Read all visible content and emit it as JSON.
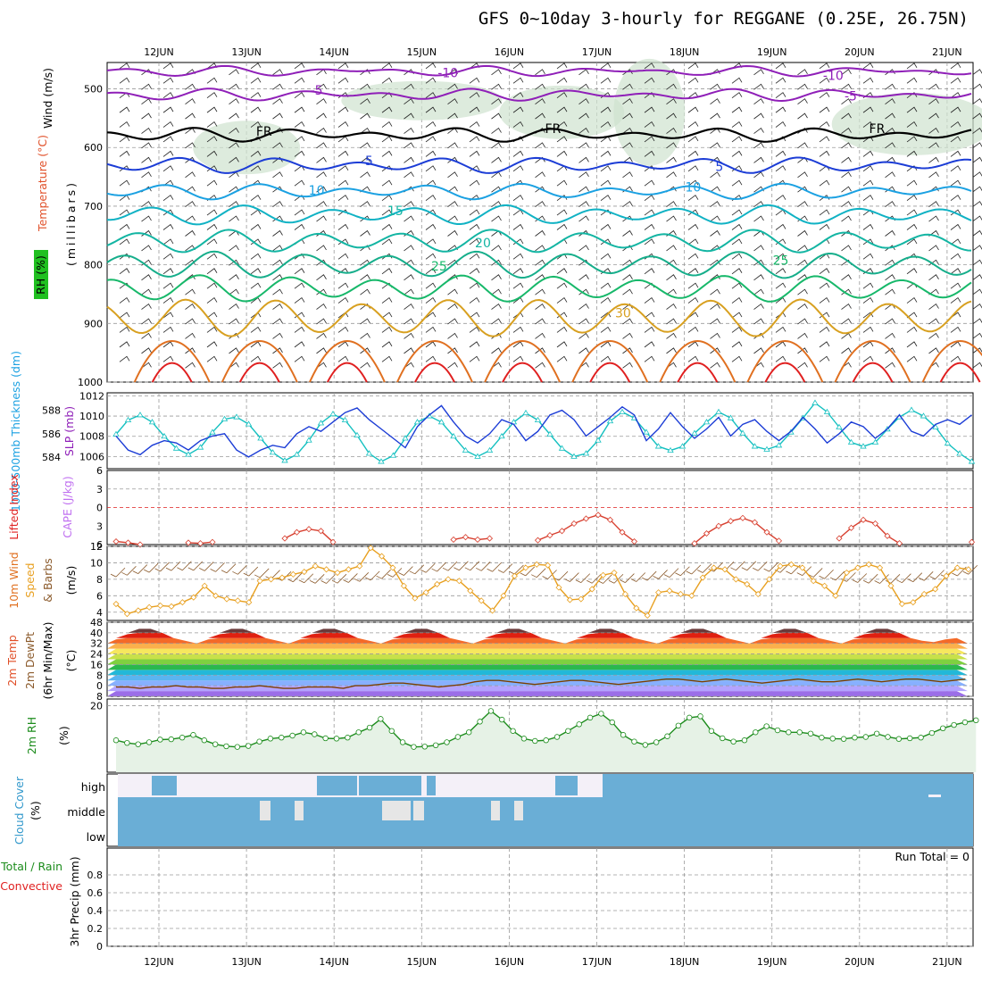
{
  "title": "GFS 0~10day 3-hourly for REGGANE (0.25E, 26.75N)",
  "days": [
    "12JUN",
    "13JUN",
    "14JUN",
    "15JUN",
    "16JUN",
    "17JUN",
    "18JUN",
    "19JUN",
    "20JUN",
    "21JUN"
  ],
  "run_total": "Run Total = 0",
  "colors": {
    "grid": "#9a9a9a",
    "purple": "#8f1fb8",
    "black": "#000000",
    "blue": "#1c3dd6",
    "cyan": "#1ba1e2",
    "teal": "#13b5a3",
    "green": "#17b86a",
    "yellow": "#d8a020",
    "orange": "#e07020",
    "red": "#e02020",
    "rh_fill": "#e6f2e6",
    "cloud": "#6aaed6"
  },
  "chart_data": [
    {
      "id": "upper-air",
      "type": "line",
      "ylabel_parts": [
        "Wind (m/s)",
        "Temperature (°C)",
        "RH (%)"
      ],
      "yunits": "(millibars)",
      "yticks": [
        500,
        600,
        700,
        800,
        900,
        1000
      ],
      "ylim": [
        455,
        1000
      ],
      "contour_labels": [
        {
          "text": "-10",
          "day": 3.3,
          "p": 480
        },
        {
          "text": "-10",
          "day": 7.7,
          "p": 485
        },
        {
          "text": "-5",
          "day": 1.8,
          "p": 510
        },
        {
          "text": "-5",
          "day": 7.9,
          "p": 520
        },
        {
          "text": "FR",
          "day": 1.2,
          "p": 580
        },
        {
          "text": "FR",
          "day": 4.5,
          "p": 575
        },
        {
          "text": "FR",
          "day": 8.2,
          "p": 575
        },
        {
          "text": "5",
          "day": 2.4,
          "p": 630
        },
        {
          "text": "5",
          "day": 6.4,
          "p": 640
        },
        {
          "text": "10",
          "day": 1.8,
          "p": 680
        },
        {
          "text": "10",
          "day": 6.1,
          "p": 675
        },
        {
          "text": "15",
          "day": 2.7,
          "p": 715
        },
        {
          "text": "20",
          "day": 3.7,
          "p": 770
        },
        {
          "text": "25",
          "day": 3.2,
          "p": 810
        },
        {
          "text": "25",
          "day": 7.1,
          "p": 800
        },
        {
          "text": "30",
          "day": 5.3,
          "p": 890
        }
      ]
    },
    {
      "id": "thickness-slp",
      "type": "line",
      "ylabel_left": "1000-500mb Thickness (dm)",
      "ylabel_right": "SLP (mb)",
      "yticks_left": [
        584,
        586,
        588
      ],
      "yticks_right": [
        1006,
        1008,
        1010,
        1012
      ],
      "series": [
        {
          "name": "SLP (mb)",
          "color": "#14c0c0",
          "values": [
            1008.2,
            1009.6,
            1010.1,
            1009.4,
            1008.0,
            1006.8,
            1006.2,
            1006.9,
            1008.4,
            1009.7,
            1009.9,
            1009.2,
            1007.8,
            1006.4,
            1005.6,
            1006.2,
            1007.6,
            1009.3,
            1010.2,
            1009.6,
            1008.1,
            1006.3,
            1005.5,
            1006.1,
            1007.8,
            1009.4,
            1010.0,
            1009.4,
            1008.0,
            1006.6,
            1006.0,
            1006.6,
            1008.0,
            1009.4,
            1010.3,
            1009.6,
            1008.2,
            1006.8,
            1006.0,
            1006.3,
            1007.6,
            1009.5,
            1010.4,
            1009.8,
            1008.4,
            1007.0,
            1006.6,
            1007.0,
            1008.3,
            1009.4,
            1010.4,
            1009.8,
            1008.3,
            1007.0,
            1006.7,
            1007.1,
            1008.4,
            1009.8,
            1011.3,
            1010.4,
            1008.9,
            1007.4,
            1007.0,
            1007.4,
            1008.7,
            1009.9,
            1010.6,
            1010.0,
            1008.9,
            1007.3,
            1006.3,
            1005.5
          ]
        },
        {
          "name": "Thickness (dm)",
          "color": "#1c3dd6",
          "values": [
            585.8,
            584.6,
            584.2,
            585.0,
            585.4,
            585.2,
            584.6,
            585.4,
            585.8,
            586.0,
            584.6,
            584.0,
            584.6,
            585.0,
            584.8,
            586.0,
            586.6,
            586.2,
            587.0,
            587.8,
            588.2,
            587.2,
            586.4,
            585.6,
            584.8,
            586.6,
            587.6,
            588.4,
            587.0,
            585.8,
            585.2,
            586.0,
            587.2,
            586.8,
            585.4,
            586.2,
            587.6,
            588.0,
            587.2,
            585.8,
            586.6,
            587.4,
            588.3,
            587.6,
            585.4,
            586.4,
            587.8,
            586.6,
            585.6,
            586.4,
            587.4,
            585.8,
            586.8,
            587.2,
            586.2,
            585.4,
            586.2,
            587.4,
            586.4,
            585.2,
            586.0,
            587.0,
            586.6,
            585.6,
            586.4,
            587.6,
            586.2,
            585.8,
            586.8,
            587.2,
            586.8,
            587.6
          ]
        }
      ]
    },
    {
      "id": "cape-li",
      "type": "line",
      "ylabel_left": "Lifted Index",
      "ylabel_right": "CAPE (J/kg)",
      "yticks": [
        -6,
        -3,
        0,
        3,
        6
      ],
      "ylim": [
        -6,
        6
      ],
      "series": [
        {
          "name": "Lifted Index",
          "color": "#d84030",
          "values": [
            5.5,
            5.7,
            6.0,
            null,
            null,
            null,
            5.7,
            5.8,
            5.6,
            null,
            null,
            null,
            null,
            null,
            5.0,
            4.0,
            3.5,
            3.8,
            5.6,
            null,
            null,
            null,
            null,
            null,
            null,
            null,
            null,
            null,
            5.2,
            4.8,
            5.2,
            5.0,
            null,
            null,
            null,
            5.3,
            4.5,
            3.8,
            2.6,
            1.8,
            1.2,
            2.0,
            4.0,
            5.5,
            null,
            null,
            null,
            null,
            5.8,
            4.2,
            3.0,
            2.2,
            1.7,
            2.4,
            4.0,
            5.4,
            null,
            null,
            null,
            null,
            5.0,
            3.3,
            2.0,
            2.6,
            4.6,
            5.8,
            null,
            null,
            null,
            null,
            null,
            5.6
          ]
        }
      ]
    },
    {
      "id": "wind10m",
      "type": "line",
      "ylabel": "10m Wind Speed & Barbs (m/s)",
      "yticks": [
        4,
        6,
        8,
        10,
        12
      ],
      "ylim": [
        3,
        12
      ],
      "series": [
        {
          "name": "10m Wind Speed (m/s)",
          "color": "#e8a020",
          "values": [
            5.0,
            3.8,
            4.2,
            4.6,
            4.8,
            4.7,
            5.2,
            5.8,
            7.2,
            6.0,
            5.6,
            5.4,
            5.2,
            7.8,
            8.0,
            8.2,
            8.6,
            8.9,
            9.6,
            9.2,
            8.8,
            9.2,
            9.6,
            11.8,
            10.8,
            9.4,
            7.2,
            5.7,
            6.4,
            7.4,
            8.0,
            7.8,
            6.6,
            5.4,
            4.2,
            6.0,
            8.4,
            9.4,
            9.8,
            9.7,
            7.0,
            5.5,
            5.6,
            6.8,
            8.5,
            8.8,
            6.2,
            4.5,
            3.6,
            6.4,
            6.6,
            6.2,
            6.0,
            8.2,
            9.4,
            9.2,
            8.0,
            7.4,
            6.2,
            8.0,
            9.6,
            9.8,
            9.4,
            7.8,
            7.2,
            6.0,
            8.8,
            9.4,
            9.8,
            9.4,
            7.2,
            5.0,
            5.2,
            6.2,
            6.8,
            8.4,
            9.4,
            9.2
          ]
        }
      ]
    },
    {
      "id": "temp2m",
      "type": "area",
      "ylabel": "2m Temp 2m DewPt (6hr Min/Max) (°C)",
      "yticks": [
        -8,
        0,
        8,
        16,
        24,
        32,
        40,
        48
      ],
      "ylim": [
        -8,
        48
      ],
      "series": [
        {
          "name": "2m Temp (°C)",
          "color": "#a00000",
          "values": [
            35,
            39,
            43,
            43,
            40,
            36,
            34,
            32,
            35,
            39,
            43,
            43,
            40,
            36,
            34,
            32,
            35,
            39,
            43,
            43,
            40,
            36,
            34,
            32,
            35,
            39,
            43,
            43,
            40,
            36,
            34,
            32,
            35,
            39,
            43,
            43,
            40,
            36,
            34,
            32,
            35,
            39,
            43,
            43,
            40,
            36,
            34,
            32,
            35,
            39,
            43,
            43,
            40,
            36,
            34,
            32,
            35,
            39,
            43,
            43,
            40,
            36,
            34,
            32,
            35,
            39,
            43,
            43,
            40,
            36,
            34,
            33,
            35,
            36
          ]
        },
        {
          "name": "2m DewPt (°C)",
          "color": "#7b3f00",
          "values": [
            -1,
            -1,
            -2,
            -1,
            -1,
            0,
            -1,
            -1,
            -2,
            -2,
            -1,
            -1,
            0,
            -1,
            -2,
            -2,
            -1,
            -1,
            -1,
            -2,
            0,
            0,
            1,
            2,
            2,
            1,
            0,
            -1,
            0,
            1,
            3,
            4,
            4,
            3,
            2,
            1,
            2,
            3,
            4,
            4,
            3,
            2,
            1,
            2,
            3,
            4,
            5,
            5,
            4,
            3,
            4,
            5,
            4,
            3,
            2,
            3,
            4,
            5,
            4,
            3,
            3,
            4,
            5,
            4,
            3,
            4,
            5,
            5,
            4,
            3,
            4,
            5
          ]
        }
      ]
    },
    {
      "id": "rh2m",
      "type": "area",
      "ylabel": "2m RH (%)",
      "yticks": [
        20
      ],
      "ylim": [
        0,
        22
      ],
      "series": [
        {
          "name": "2m RH (%)",
          "color": "#1c8c1c",
          "values": [
            9.6,
            8.8,
            8.4,
            9.0,
            9.8,
            9.9,
            10.4,
            11.2,
            9.6,
            8.4,
            7.8,
            7.6,
            7.9,
            9.2,
            10.1,
            10.4,
            11.0,
            12.0,
            11.4,
            10.2,
            10.1,
            10.4,
            12.0,
            13.4,
            16.0,
            12.4,
            9.0,
            7.6,
            7.7,
            8.1,
            9.0,
            10.6,
            12.0,
            15.2,
            18.4,
            15.8,
            12.4,
            10.1,
            9.4,
            9.6,
            10.6,
            12.4,
            14.4,
            16.4,
            17.6,
            15.0,
            11.2,
            9.2,
            8.2,
            9.0,
            10.8,
            14.0,
            16.4,
            16.8,
            12.4,
            10.2,
            9.2,
            9.6,
            12.0,
            13.8,
            12.6,
            12.0,
            12.0,
            11.6,
            10.4,
            10.1,
            10.0,
            10.4,
            10.6,
            11.6,
            10.6,
            10.0,
            10.2,
            10.4,
            11.8,
            13.2,
            14.2,
            15.0,
            15.6
          ]
        }
      ]
    },
    {
      "id": "cloud-cover",
      "type": "area",
      "ylabel": "Cloud Cover (%)",
      "levels": [
        "high",
        "middle",
        "low"
      ]
    },
    {
      "id": "precip",
      "type": "bar",
      "ylabel_left": "Total / Rain",
      "ylabel_left2": "Convective",
      "ylabel": "3hr Precip (mm)",
      "yticks": [
        0,
        0.2,
        0.4,
        0.6,
        0.8
      ],
      "ylim": [
        0,
        1.0
      ],
      "values": []
    }
  ]
}
